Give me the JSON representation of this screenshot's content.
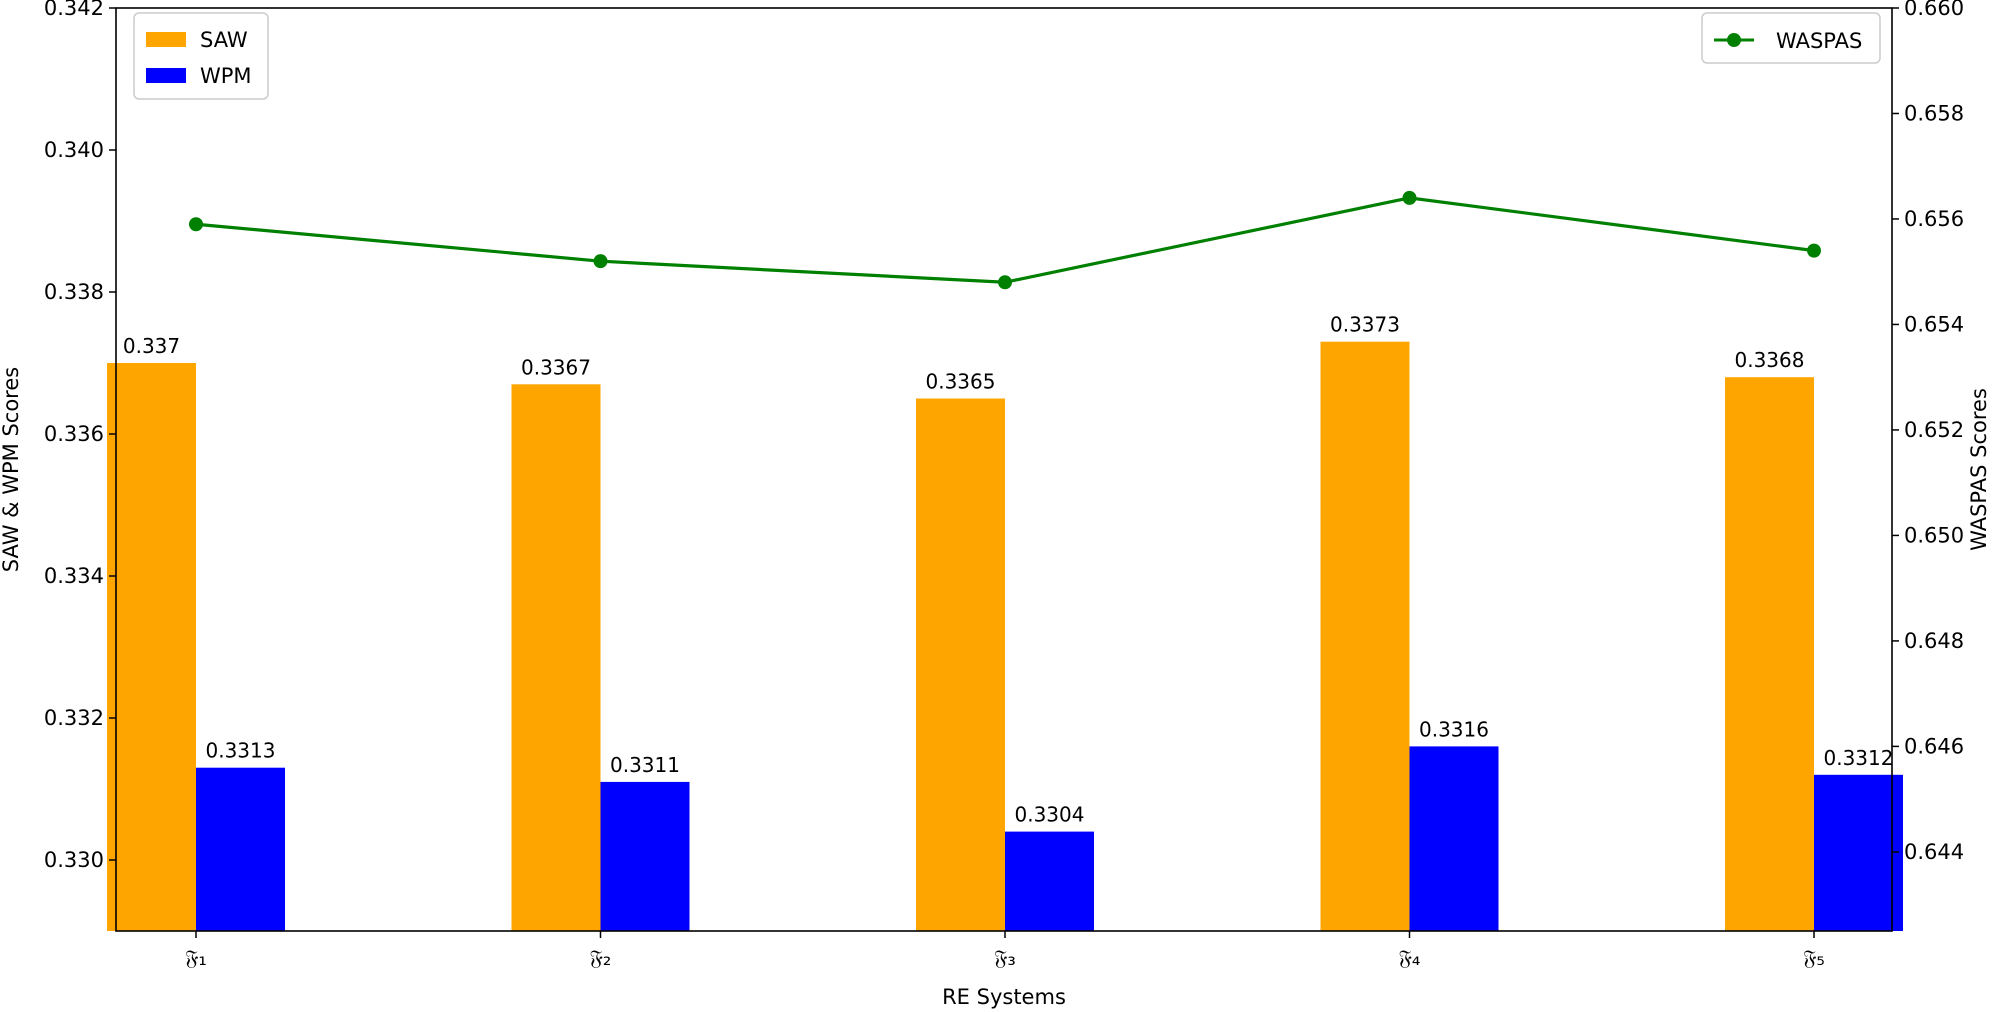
{
  "chart_data": {
    "type": "bar",
    "categories": [
      "𝔉₁",
      "𝔉₂",
      "𝔉₃",
      "𝔉₄",
      "𝔉₅"
    ],
    "xlabel": "RE Systems",
    "ylabel": "SAW & WPM Scores",
    "ylabel_right": "WASPAS Scores",
    "ylim": [
      0.329,
      0.342
    ],
    "ylim_right": [
      0.6425,
      0.66
    ],
    "yticks": [
      "0.330",
      "0.332",
      "0.334",
      "0.336",
      "0.338",
      "0.340",
      "0.342"
    ],
    "yticks_right": [
      "0.644",
      "0.646",
      "0.648",
      "0.650",
      "0.652",
      "0.654",
      "0.656",
      "0.658",
      "0.660"
    ],
    "series": [
      {
        "name": "SAW",
        "type": "bar",
        "axis": "left",
        "color": "#FFA500",
        "values": [
          0.337,
          0.3367,
          0.3365,
          0.3373,
          0.3368
        ],
        "labels": [
          "0.337",
          "0.3367",
          "0.3365",
          "0.3373",
          "0.3368"
        ]
      },
      {
        "name": "WPM",
        "type": "bar",
        "axis": "left",
        "color": "#0000FF",
        "values": [
          0.3313,
          0.3311,
          0.3304,
          0.3316,
          0.3312
        ],
        "labels": [
          "0.3313",
          "0.3311",
          "0.3304",
          "0.3316",
          "0.3312"
        ]
      },
      {
        "name": "WASPAS",
        "type": "line",
        "axis": "right",
        "color": "#008000",
        "values": [
          0.6559,
          0.6552,
          0.6548,
          0.6564,
          0.6554
        ]
      }
    ],
    "grid": false,
    "legend_left": "top-left",
    "legend_right": "top-right"
  }
}
